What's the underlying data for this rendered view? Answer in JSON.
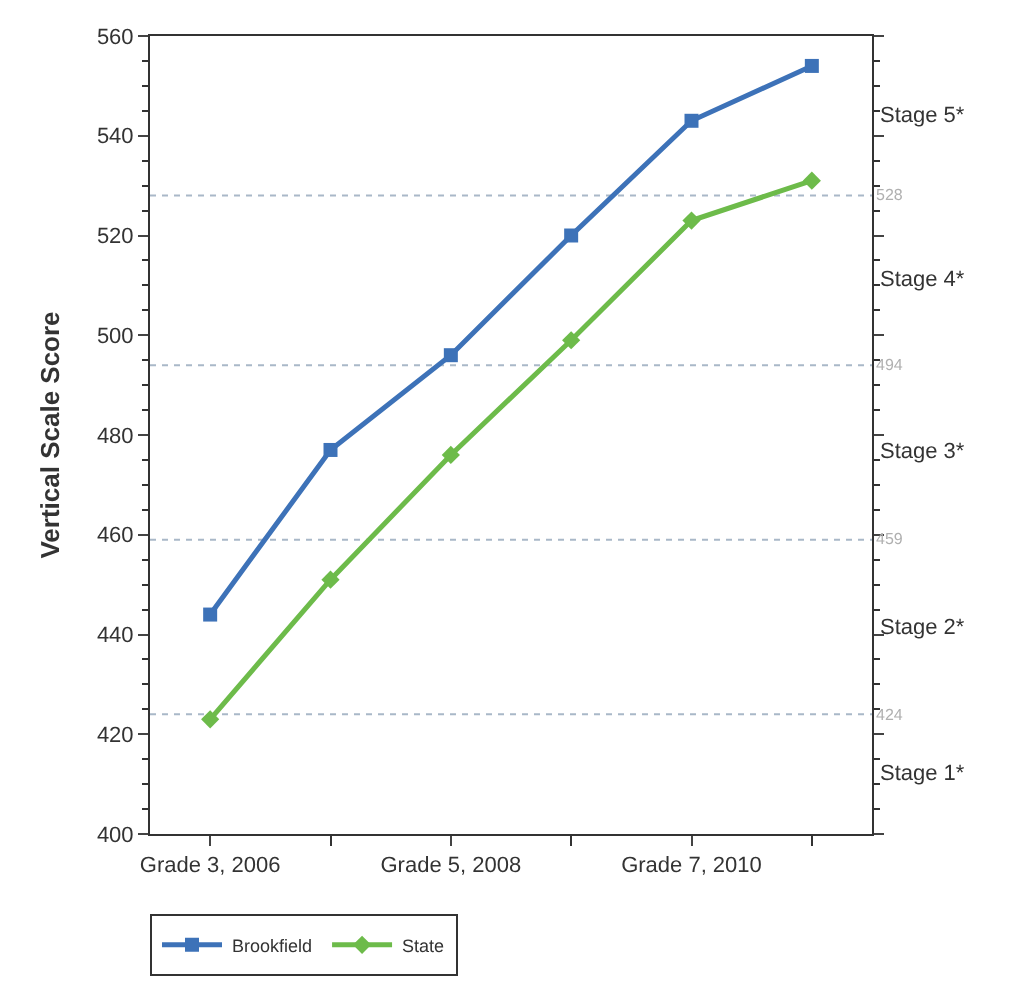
{
  "chart_data": {
    "type": "line",
    "ylabel": "Vertical Scale Score",
    "categories": [
      "Grade 3, 2006",
      null,
      "Grade 5, 2008",
      null,
      "Grade 7, 2010",
      null
    ],
    "series": [
      {
        "name": "Brookfield",
        "color": "#3d72b8",
        "marker": "square",
        "values": [
          444,
          477,
          496,
          520,
          543,
          554
        ]
      },
      {
        "name": "State",
        "color": "#6dbb4a",
        "marker": "diamond",
        "values": [
          423,
          451,
          476,
          499,
          523,
          531
        ]
      }
    ],
    "ylim": [
      400,
      560
    ],
    "yticks": [
      400,
      420,
      440,
      460,
      480,
      500,
      520,
      540,
      560
    ],
    "ref_lines": [
      {
        "axis": "y",
        "value": 424,
        "label": "424",
        "color": "#a9b8c8",
        "line_style": "dotted"
      },
      {
        "axis": "y",
        "value": 459,
        "label": "459",
        "color": "#a9b8c8",
        "line_style": "dotted"
      },
      {
        "axis": "y",
        "value": 494,
        "label": "494",
        "color": "#a9b8c8",
        "line_style": "dotted"
      },
      {
        "axis": "y",
        "value": 528,
        "label": "528",
        "color": "#a9b8c8",
        "line_style": "dotted"
      }
    ],
    "annotations": [
      "Stage 5*",
      "Stage 4*",
      "Stage 3*",
      "Stage 2*",
      "Stage 1*"
    ],
    "grid": false,
    "legend": "bottom left",
    "line_style": "solid"
  }
}
